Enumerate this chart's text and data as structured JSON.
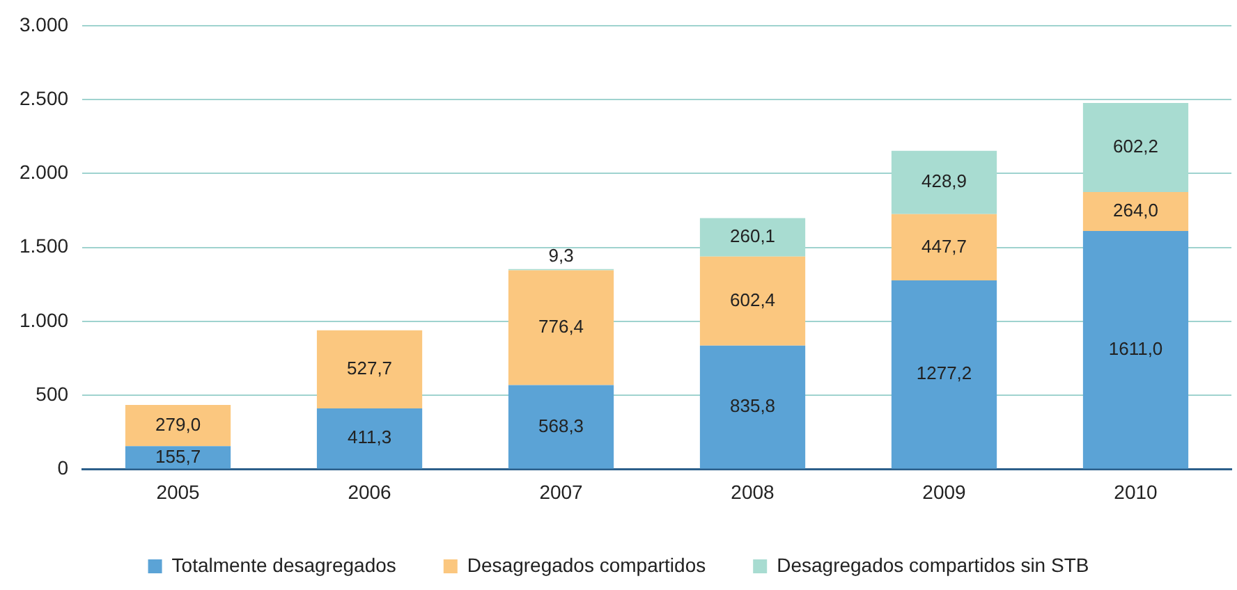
{
  "chart_data": {
    "type": "bar",
    "stacked": true,
    "categories": [
      "2005",
      "2006",
      "2007",
      "2008",
      "2009",
      "2010"
    ],
    "series": [
      {
        "name": "Totalmente desagregados",
        "color": "#5ba3d6",
        "values": [
          155.7,
          411.3,
          568.3,
          835.8,
          1277.2,
          1611.0
        ],
        "value_labels": [
          "155,7",
          "411,3",
          "568,3",
          "835,8",
          "1277,2",
          "1611,0"
        ]
      },
      {
        "name": "Desagregados compartidos",
        "color": "#fbc77f",
        "values": [
          279.0,
          527.7,
          776.4,
          602.4,
          447.7,
          264.0
        ],
        "value_labels": [
          "279,0",
          "527,7",
          "776,4",
          "602,4",
          "447,7",
          "264,0"
        ]
      },
      {
        "name": "Desagregados compartidos sin STB",
        "color": "#a8dcd1",
        "values": [
          null,
          null,
          9.3,
          260.1,
          428.9,
          602.2
        ],
        "value_labels": [
          null,
          null,
          "9,3",
          "260,1",
          "428,9",
          "602,2"
        ]
      }
    ],
    "ylim": [
      0,
      3000
    ],
    "yticks": [
      0,
      {
        "value": 500,
        "label": "500"
      },
      {
        "value": 1000,
        "label": "1.000"
      },
      {
        "value": 1500,
        "label": "1.500"
      },
      {
        "value": 2000,
        "label": "2.000"
      },
      {
        "value": 2500,
        "label": "2.500"
      },
      {
        "value": 3000,
        "label": "3.000"
      }
    ],
    "grid": "y",
    "legend": "bottom"
  }
}
